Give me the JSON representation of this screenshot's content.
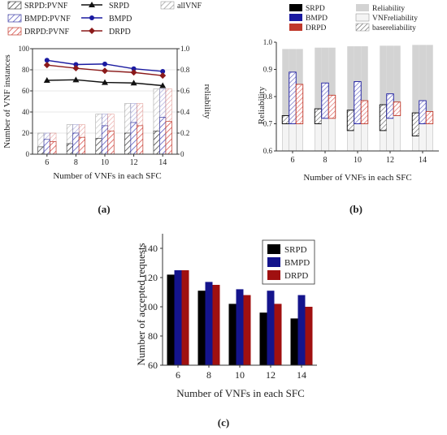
{
  "chart_data": [
    {
      "id": "a",
      "panel_label": "(a)",
      "type": "bar",
      "xlabel": "Number of VNFs in each SFC",
      "ylabel": "Number of VNF instances",
      "ylabel_right": "reliability",
      "categories": [
        "6",
        "8",
        "10",
        "12",
        "14"
      ],
      "ylim": [
        0,
        100
      ],
      "yticks": [
        0,
        20,
        40,
        60,
        80,
        100
      ],
      "ylim_right": [
        0,
        1.0
      ],
      "yticks_right": [
        "0",
        "0.2",
        "0.4",
        "0.6",
        "0.8",
        "1.0"
      ],
      "bar_series": [
        {
          "name": "SRPD:PVNF",
          "color": "#444444",
          "solid": [
            7,
            10,
            15,
            20,
            22
          ],
          "total": [
            20,
            28,
            38,
            48,
            62
          ]
        },
        {
          "name": "BMPD:PVNF",
          "color": "#3a3aa0",
          "solid": [
            14,
            20,
            27,
            30,
            35
          ],
          "total": [
            20,
            28,
            38,
            48,
            62
          ]
        },
        {
          "name": "DRPD:PVNF",
          "color": "#c0392b",
          "solid": [
            12,
            16,
            22,
            27,
            31
          ],
          "total": [
            20,
            28,
            38,
            48,
            62
          ]
        }
      ],
      "allvnf_label": "allVNF",
      "line_series": [
        {
          "name": "SRPD",
          "color": "#111111",
          "marker": "triangle",
          "values": [
            0.7,
            0.705,
            0.68,
            0.675,
            0.65
          ]
        },
        {
          "name": "BMPD",
          "color": "#1a1aa0",
          "marker": "circle",
          "values": [
            0.89,
            0.85,
            0.855,
            0.81,
            0.785
          ]
        },
        {
          "name": "DRPD",
          "color": "#8b1a1a",
          "marker": "diamond",
          "values": [
            0.845,
            0.815,
            0.79,
            0.775,
            0.745
          ]
        }
      ]
    },
    {
      "id": "b",
      "panel_label": "(b)",
      "type": "bar",
      "xlabel": "Number of VNFs in each SFC",
      "ylabel": "Reliability",
      "categories": [
        "6",
        "8",
        "10",
        "12",
        "14"
      ],
      "ylim": [
        0.6,
        1.0
      ],
      "yticks": [
        "0.6",
        "0.7",
        "0.8",
        "0.9",
        "1.0"
      ],
      "series": [
        {
          "name": "SRPD",
          "color": "#000000",
          "base": [
            0.7,
            0.7,
            0.675,
            0.675,
            0.655
          ],
          "total": [
            0.73,
            0.755,
            0.75,
            0.77,
            0.74
          ]
        },
        {
          "name": "BMPD",
          "color": "#1a1aa0",
          "base": [
            0.7,
            0.72,
            0.7,
            0.72,
            0.7
          ],
          "total": [
            0.89,
            0.85,
            0.855,
            0.81,
            0.785
          ]
        },
        {
          "name": "DRPD",
          "color": "#c0392b",
          "base": [
            0.7,
            0.72,
            0.7,
            0.73,
            0.7
          ],
          "total": [
            0.845,
            0.805,
            0.785,
            0.78,
            0.745
          ]
        }
      ],
      "reliability_bg": [
        0.975,
        0.98,
        0.985,
        0.987,
        0.99
      ],
      "legend_extra": [
        "Reliability",
        "VNFreliability",
        "basereliability"
      ]
    },
    {
      "id": "c",
      "panel_label": "(c)",
      "type": "bar",
      "xlabel": "Number of VNFs in each SFC",
      "ylabel": "Number of accepted requests",
      "categories": [
        "6",
        "8",
        "10",
        "12",
        "14"
      ],
      "ylim": [
        60,
        150
      ],
      "yticks": [
        60,
        80,
        100,
        120,
        140
      ],
      "series": [
        {
          "name": "SRPD",
          "color": "#000000",
          "values": [
            122,
            111,
            102,
            96,
            92
          ]
        },
        {
          "name": "BMPD",
          "color": "#14148c",
          "values": [
            125,
            117,
            112,
            111,
            108
          ]
        },
        {
          "name": "DRPD",
          "color": "#a01010",
          "values": [
            125,
            115,
            108,
            102,
            100
          ]
        }
      ]
    }
  ]
}
